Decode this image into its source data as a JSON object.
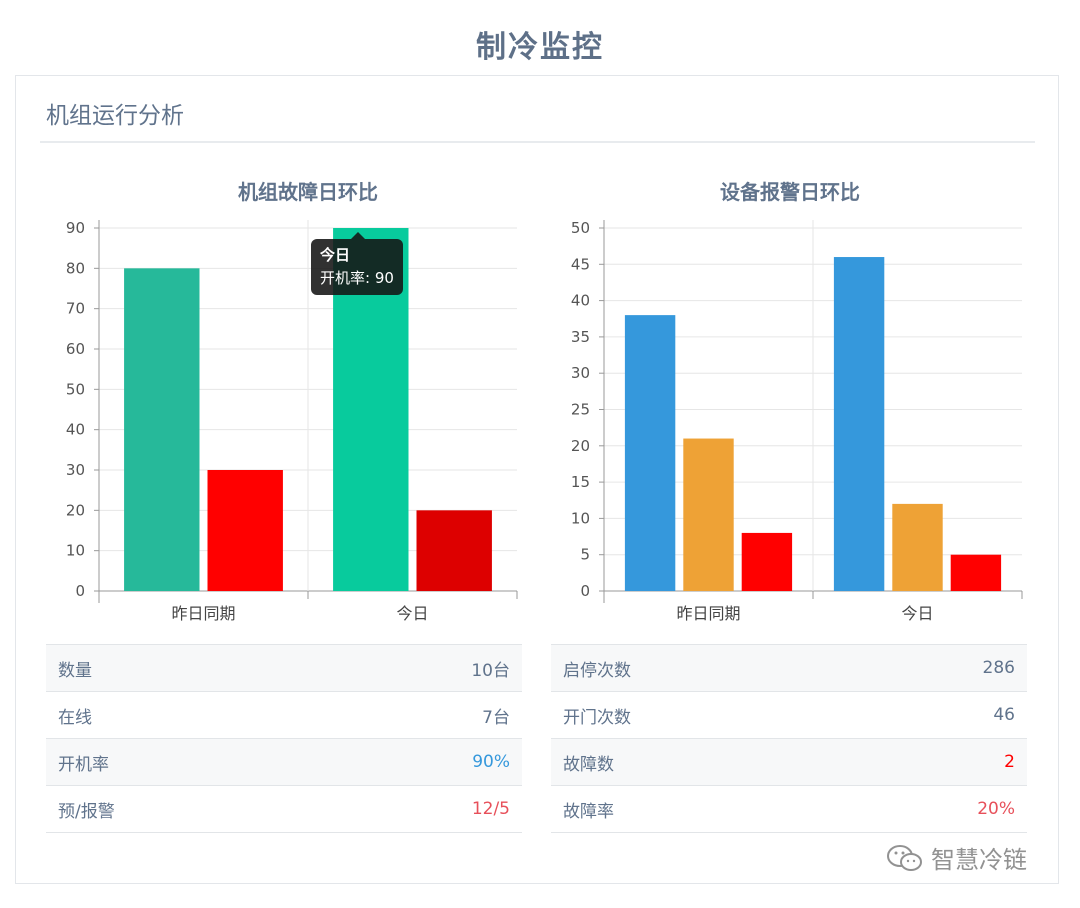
{
  "page_title": "制冷监控",
  "panel_title": "机组运行分析",
  "watermark": "智慧冷链",
  "charts": [
    {
      "title": "机组故障日环比",
      "chart_data": {
        "type": "bar",
        "title": "机组故障日环比",
        "categories": [
          "昨日同期",
          "今日"
        ],
        "yticks": [
          0,
          10,
          20,
          30,
          40,
          50,
          60,
          70,
          80,
          90
        ],
        "ylim": [
          0,
          90
        ],
        "grid": true,
        "series": [
          {
            "values": [
              80,
              90
            ],
            "colors": [
              "#26b99a",
              "#08cb9d"
            ]
          },
          {
            "values": [
              30,
              20
            ],
            "colors": [
              "#ff0000",
              "#dd0000"
            ]
          }
        ],
        "tooltip": {
          "title": "今日",
          "series_label": "开机率",
          "value": "90"
        }
      }
    },
    {
      "title": "设备报警日环比",
      "chart_data": {
        "type": "bar",
        "title": "设备报警日环比",
        "categories": [
          "昨日同期",
          "今日"
        ],
        "yticks": [
          0,
          5,
          10,
          15,
          20,
          25,
          30,
          35,
          40,
          45,
          50
        ],
        "ylim": [
          0,
          50
        ],
        "grid": true,
        "series": [
          {
            "values": [
              38,
              46
            ],
            "colors": [
              "#3598dc",
              "#3598dc"
            ]
          },
          {
            "values": [
              21,
              12
            ],
            "colors": [
              "#eea236",
              "#eea236"
            ]
          },
          {
            "values": [
              8,
              5
            ],
            "colors": [
              "#ff0000",
              "#ff0000"
            ]
          }
        ]
      }
    }
  ],
  "tables": [
    [
      {
        "label": "数量",
        "value": "10台",
        "color": "#60738c"
      },
      {
        "label": "在线",
        "value": "7台",
        "color": "#60738c"
      },
      {
        "label": "开机率",
        "value": "90%",
        "color": "#3598dc"
      },
      {
        "label": "预/报警",
        "value": "12/5",
        "color": "#e7505a"
      }
    ],
    [
      {
        "label": "启停次数",
        "value": "286",
        "color": "#60738c"
      },
      {
        "label": "开门次数",
        "value": "46",
        "color": "#60738c"
      },
      {
        "label": "故障数",
        "value": "2",
        "color": "#ff0000"
      },
      {
        "label": "故障率",
        "value": "20%",
        "color": "#e7505a"
      }
    ]
  ]
}
